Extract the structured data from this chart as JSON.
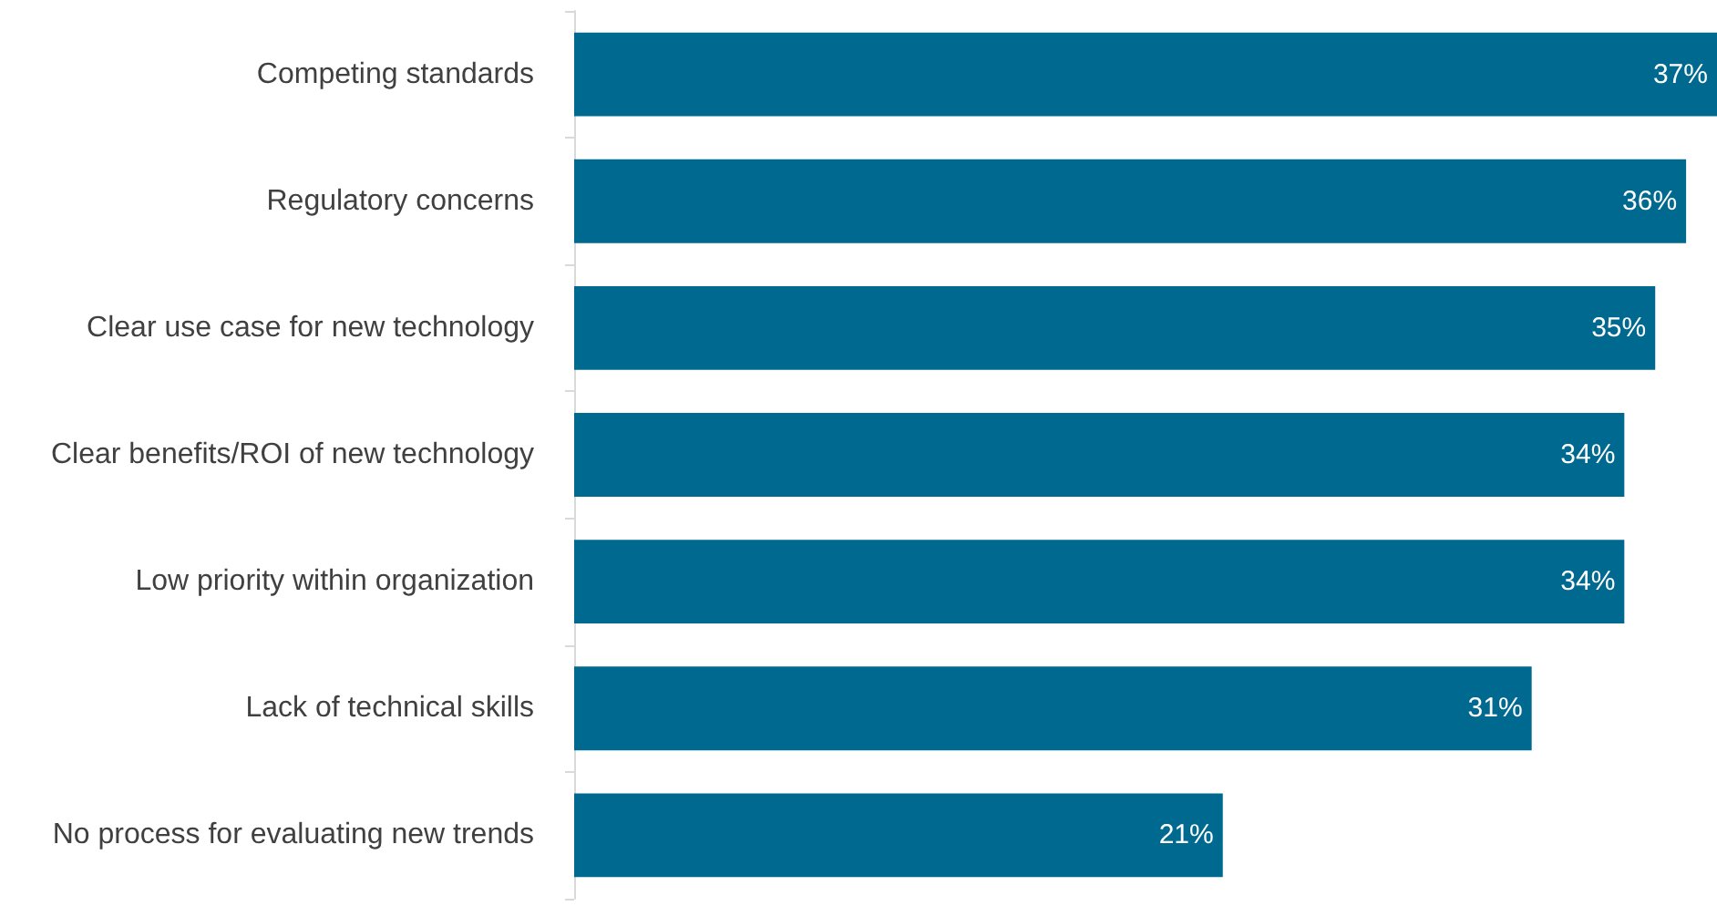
{
  "chart_data": {
    "type": "bar",
    "orientation": "horizontal",
    "categories": [
      "Competing standards",
      "Regulatory concerns",
      "Clear use case for new technology",
      "Clear benefits/ROI of new technology",
      "Low priority within organization",
      "Lack of technical skills",
      "No process for evaluating new trends"
    ],
    "values": [
      37,
      36,
      35,
      34,
      34,
      31,
      21
    ],
    "value_labels": [
      "37%",
      "36%",
      "35%",
      "34%",
      "34%",
      "31%",
      "21%"
    ],
    "color": "#00698f"
  }
}
